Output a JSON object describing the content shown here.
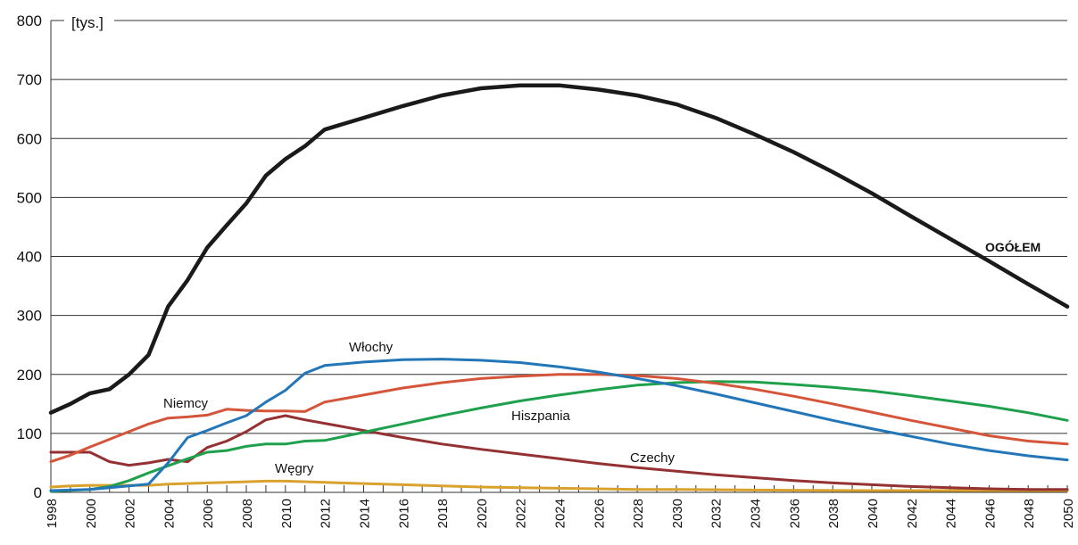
{
  "chart_data": {
    "type": "line",
    "unit_label": "[tys.]",
    "ylim": [
      0,
      800
    ],
    "xlim": [
      1998,
      2050
    ],
    "y_ticks": [
      0,
      100,
      200,
      300,
      400,
      500,
      600,
      700,
      800
    ],
    "x_ticks": [
      1998,
      2000,
      2002,
      2004,
      2006,
      2008,
      2010,
      2012,
      2014,
      2016,
      2018,
      2020,
      2022,
      2024,
      2026,
      2028,
      2030,
      2032,
      2034,
      2036,
      2038,
      2040,
      2042,
      2044,
      2046,
      2048,
      2050
    ],
    "grid": true,
    "series": [
      {
        "name": "OGÓŁEM",
        "color": "#1a1a1a",
        "points": [
          [
            1998,
            135
          ],
          [
            1999,
            150
          ],
          [
            2000,
            168
          ],
          [
            2001,
            175
          ],
          [
            2002,
            200
          ],
          [
            2003,
            233
          ],
          [
            2004,
            315
          ],
          [
            2005,
            360
          ],
          [
            2006,
            415
          ],
          [
            2007,
            453
          ],
          [
            2008,
            490
          ],
          [
            2009,
            537
          ],
          [
            2010,
            565
          ],
          [
            2011,
            587
          ],
          [
            2012,
            615
          ],
          [
            2014,
            635
          ],
          [
            2016,
            655
          ],
          [
            2018,
            673
          ],
          [
            2020,
            685
          ],
          [
            2022,
            690
          ],
          [
            2024,
            690
          ],
          [
            2026,
            683
          ],
          [
            2028,
            673
          ],
          [
            2030,
            658
          ],
          [
            2032,
            635
          ],
          [
            2034,
            607
          ],
          [
            2036,
            577
          ],
          [
            2038,
            543
          ],
          [
            2040,
            507
          ],
          [
            2042,
            468
          ],
          [
            2044,
            430
          ],
          [
            2046,
            392
          ],
          [
            2048,
            353
          ],
          [
            2050,
            315
          ]
        ]
      },
      {
        "name": "Włochy",
        "color": "#2376b7",
        "points": [
          [
            1998,
            3
          ],
          [
            2000,
            5
          ],
          [
            2001,
            8
          ],
          [
            2003,
            14
          ],
          [
            2004,
            50
          ],
          [
            2005,
            93
          ],
          [
            2006,
            105
          ],
          [
            2007,
            118
          ],
          [
            2008,
            130
          ],
          [
            2009,
            153
          ],
          [
            2010,
            173
          ],
          [
            2011,
            202
          ],
          [
            2012,
            215
          ],
          [
            2014,
            221
          ],
          [
            2016,
            225
          ],
          [
            2018,
            226
          ],
          [
            2020,
            224
          ],
          [
            2022,
            220
          ],
          [
            2024,
            213
          ],
          [
            2026,
            204
          ],
          [
            2028,
            193
          ],
          [
            2030,
            181
          ],
          [
            2032,
            167
          ],
          [
            2034,
            152
          ],
          [
            2036,
            137
          ],
          [
            2038,
            122
          ],
          [
            2040,
            108
          ],
          [
            2042,
            95
          ],
          [
            2044,
            82
          ],
          [
            2046,
            71
          ],
          [
            2048,
            62
          ],
          [
            2050,
            55
          ]
        ]
      },
      {
        "name": "Niemcy",
        "color": "#d4553a",
        "points": [
          [
            1998,
            52
          ],
          [
            1999,
            63
          ],
          [
            2000,
            77
          ],
          [
            2001,
            90
          ],
          [
            2002,
            103
          ],
          [
            2003,
            116
          ],
          [
            2004,
            126
          ],
          [
            2005,
            128
          ],
          [
            2006,
            131
          ],
          [
            2007,
            141
          ],
          [
            2008,
            139
          ],
          [
            2009,
            138
          ],
          [
            2010,
            138
          ],
          [
            2011,
            137
          ],
          [
            2012,
            153
          ],
          [
            2014,
            165
          ],
          [
            2016,
            177
          ],
          [
            2018,
            186
          ],
          [
            2020,
            193
          ],
          [
            2022,
            197
          ],
          [
            2024,
            200
          ],
          [
            2026,
            200
          ],
          [
            2028,
            198
          ],
          [
            2030,
            193
          ],
          [
            2032,
            185
          ],
          [
            2034,
            175
          ],
          [
            2036,
            163
          ],
          [
            2038,
            150
          ],
          [
            2040,
            136
          ],
          [
            2042,
            122
          ],
          [
            2044,
            109
          ],
          [
            2046,
            96
          ],
          [
            2048,
            87
          ],
          [
            2050,
            82
          ]
        ]
      },
      {
        "name": "Hiszpania",
        "color": "#1ea04c",
        "points": [
          [
            1998,
            2
          ],
          [
            2000,
            5
          ],
          [
            2001,
            10
          ],
          [
            2002,
            20
          ],
          [
            2003,
            33
          ],
          [
            2004,
            45
          ],
          [
            2005,
            57
          ],
          [
            2006,
            68
          ],
          [
            2007,
            71
          ],
          [
            2008,
            78
          ],
          [
            2009,
            82
          ],
          [
            2010,
            82
          ],
          [
            2011,
            87
          ],
          [
            2012,
            88
          ],
          [
            2014,
            102
          ],
          [
            2016,
            116
          ],
          [
            2018,
            130
          ],
          [
            2020,
            143
          ],
          [
            2022,
            155
          ],
          [
            2024,
            165
          ],
          [
            2026,
            174
          ],
          [
            2028,
            182
          ],
          [
            2030,
            186
          ],
          [
            2032,
            188
          ],
          [
            2034,
            187
          ],
          [
            2036,
            183
          ],
          [
            2038,
            178
          ],
          [
            2040,
            172
          ],
          [
            2042,
            164
          ],
          [
            2044,
            155
          ],
          [
            2046,
            146
          ],
          [
            2048,
            135
          ],
          [
            2050,
            122
          ]
        ]
      },
      {
        "name": "Czechy",
        "color": "#943133",
        "points": [
          [
            1998,
            68
          ],
          [
            1999,
            68
          ],
          [
            2000,
            68
          ],
          [
            2001,
            52
          ],
          [
            2002,
            46
          ],
          [
            2003,
            50
          ],
          [
            2004,
            56
          ],
          [
            2005,
            52
          ],
          [
            2006,
            76
          ],
          [
            2007,
            87
          ],
          [
            2008,
            103
          ],
          [
            2009,
            123
          ],
          [
            2010,
            130
          ],
          [
            2011,
            123
          ],
          [
            2012,
            117
          ],
          [
            2014,
            105
          ],
          [
            2016,
            93
          ],
          [
            2018,
            82
          ],
          [
            2020,
            73
          ],
          [
            2022,
            65
          ],
          [
            2024,
            57
          ],
          [
            2026,
            49
          ],
          [
            2028,
            42
          ],
          [
            2030,
            36
          ],
          [
            2032,
            30
          ],
          [
            2034,
            25
          ],
          [
            2036,
            20
          ],
          [
            2038,
            16
          ],
          [
            2040,
            13
          ],
          [
            2042,
            10
          ],
          [
            2044,
            8
          ],
          [
            2046,
            6
          ],
          [
            2048,
            5
          ],
          [
            2050,
            5
          ]
        ]
      },
      {
        "name": "Węgry",
        "color": "#d9a22e",
        "points": [
          [
            1998,
            9
          ],
          [
            1999,
            11
          ],
          [
            2000,
            12
          ],
          [
            2002,
            12
          ],
          [
            2003,
            12
          ],
          [
            2004,
            14
          ],
          [
            2006,
            16
          ],
          [
            2008,
            18
          ],
          [
            2009,
            19
          ],
          [
            2010,
            19
          ],
          [
            2012,
            17
          ],
          [
            2014,
            15
          ],
          [
            2016,
            13
          ],
          [
            2018,
            11
          ],
          [
            2020,
            9
          ],
          [
            2022,
            8
          ],
          [
            2024,
            7
          ],
          [
            2026,
            6
          ],
          [
            2028,
            5
          ],
          [
            2030,
            5
          ],
          [
            2034,
            4
          ],
          [
            2040,
            3
          ],
          [
            2046,
            3
          ],
          [
            2050,
            3
          ]
        ]
      }
    ]
  }
}
